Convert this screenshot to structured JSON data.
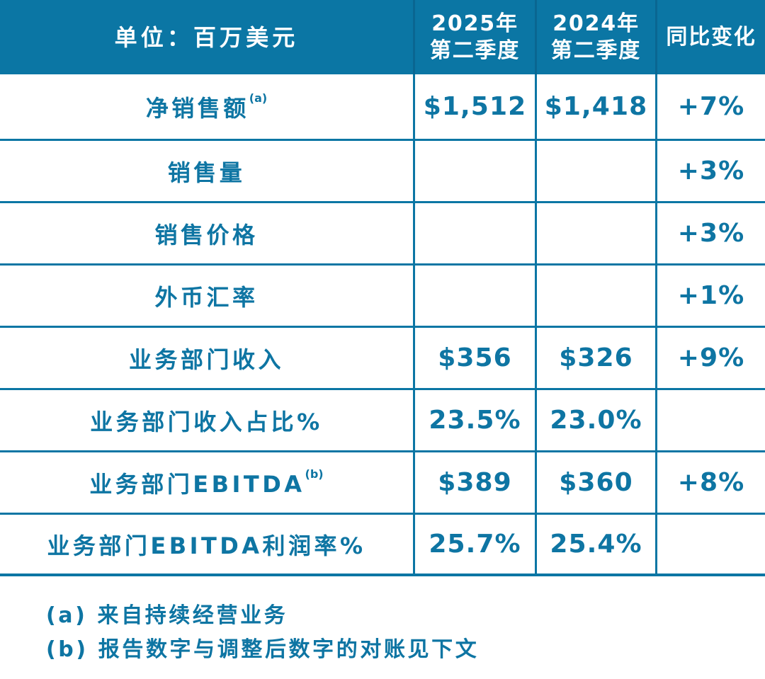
{
  "colors": {
    "header_bg": "#0b76a4",
    "header_separator": "#0a6691",
    "border": "#0b76a4",
    "text": "#0e75a3",
    "header_text": "#ffffff"
  },
  "table": {
    "header": {
      "unit_label": "单位：百万美元",
      "col_2025_line1": "2025年",
      "col_2025_line2": "第二季度",
      "col_2024_line1": "2024年",
      "col_2024_line2": "第二季度",
      "col_yoy": "同比变化"
    },
    "rows": [
      {
        "label": "净销售额",
        "sup": "(a)",
        "q2_2025": "$1,512",
        "q2_2024": "$1,418",
        "yoy": "+7%"
      },
      {
        "label": "销售量",
        "sup": "",
        "q2_2025": "",
        "q2_2024": "",
        "yoy": "+3%"
      },
      {
        "label": "销售价格",
        "sup": "",
        "q2_2025": "",
        "q2_2024": "",
        "yoy": "+3%"
      },
      {
        "label": "外币汇率",
        "sup": "",
        "q2_2025": "",
        "q2_2024": "",
        "yoy": "+1%"
      },
      {
        "label": "业务部门收入",
        "sup": "",
        "q2_2025": "$356",
        "q2_2024": "$326",
        "yoy": "+9%"
      },
      {
        "label": "业务部门收入占比%",
        "sup": "",
        "q2_2025": "23.5%",
        "q2_2024": "23.0%",
        "yoy": ""
      },
      {
        "label": "业务部门EBITDA",
        "sup": "(b)",
        "q2_2025": "$389",
        "q2_2024": "$360",
        "yoy": "+8%"
      },
      {
        "label": "业务部门EBITDA利润率%",
        "sup": "",
        "q2_2025": "25.7%",
        "q2_2024": "25.4%",
        "yoy": ""
      }
    ]
  },
  "footnotes": {
    "a": "(a) 来自持续经营业务",
    "b": "(b) 报告数字与调整后数字的对账见下文"
  },
  "chart_data": {
    "type": "table",
    "title": "单位：百万美元",
    "columns": [
      "单位：百万美元",
      "2025年第二季度",
      "2024年第二季度",
      "同比变化"
    ],
    "rows": [
      [
        "净销售额(a)",
        "$1,512",
        "$1,418",
        "+7%"
      ],
      [
        "销售量",
        "",
        "",
        "+3%"
      ],
      [
        "销售价格",
        "",
        "",
        "+3%"
      ],
      [
        "外币汇率",
        "",
        "",
        "+1%"
      ],
      [
        "业务部门收入",
        "$356",
        "$326",
        "+9%"
      ],
      [
        "业务部门收入占比%",
        "23.5%",
        "23.0%",
        ""
      ],
      [
        "业务部门EBITDA(b)",
        "$389",
        "$360",
        "+8%"
      ],
      [
        "业务部门EBITDA利润率%",
        "25.7%",
        "25.4%",
        ""
      ]
    ],
    "footnotes": [
      "(a) 来自持续经营业务",
      "(b) 报告数字与调整后数字的对账见下文"
    ]
  }
}
